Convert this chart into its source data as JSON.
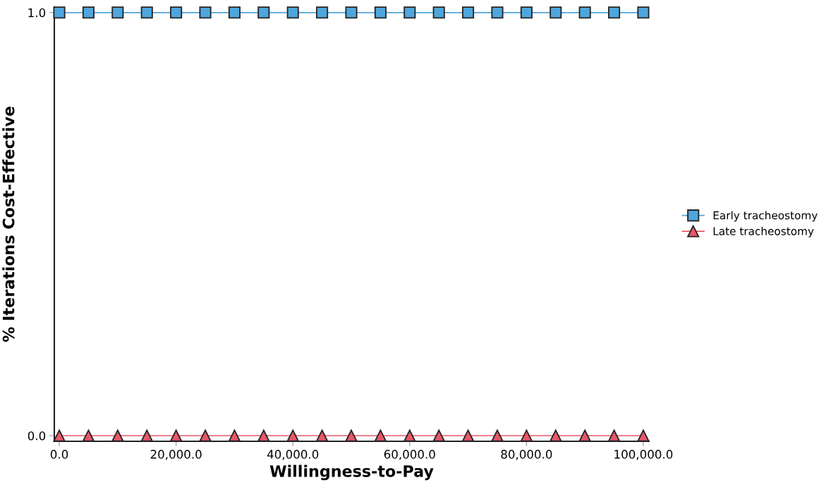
{
  "chart_data": {
    "type": "line",
    "xlabel": "Willingness-to-Pay",
    "ylabel": "% Iterations Cost-Effective",
    "x": [
      0,
      5000,
      10000,
      15000,
      20000,
      25000,
      30000,
      35000,
      40000,
      45000,
      50000,
      55000,
      60000,
      65000,
      70000,
      75000,
      80000,
      85000,
      90000,
      95000,
      100000
    ],
    "series": [
      {
        "name": "Early tracheostomy",
        "color": "#4ea6dc",
        "marker": "square",
        "values": [
          1,
          1,
          1,
          1,
          1,
          1,
          1,
          1,
          1,
          1,
          1,
          1,
          1,
          1,
          1,
          1,
          1,
          1,
          1,
          1,
          1
        ]
      },
      {
        "name": "Late tracheostomy",
        "color": "#e8576a",
        "marker": "triangle",
        "values": [
          0,
          0,
          0,
          0,
          0,
          0,
          0,
          0,
          0,
          0,
          0,
          0,
          0,
          0,
          0,
          0,
          0,
          0,
          0,
          0,
          0
        ]
      }
    ],
    "xlim": [
      -850,
      100970
    ],
    "ylim": [
      -0.0133,
      1.013
    ],
    "xticks": [
      {
        "value": 0,
        "label": "0.0"
      },
      {
        "value": 20000,
        "label": "20,000.0"
      },
      {
        "value": 40000,
        "label": "40,000.0"
      },
      {
        "value": 60000,
        "label": "60,000.0"
      },
      {
        "value": 80000,
        "label": "80,000.0"
      },
      {
        "value": 100000,
        "label": "100,000.0"
      }
    ],
    "yticks": [
      {
        "value": 0,
        "label": "0.0"
      },
      {
        "value": 1,
        "label": "1.0"
      }
    ],
    "grid": false,
    "legend": "right",
    "line_style": "solid"
  }
}
